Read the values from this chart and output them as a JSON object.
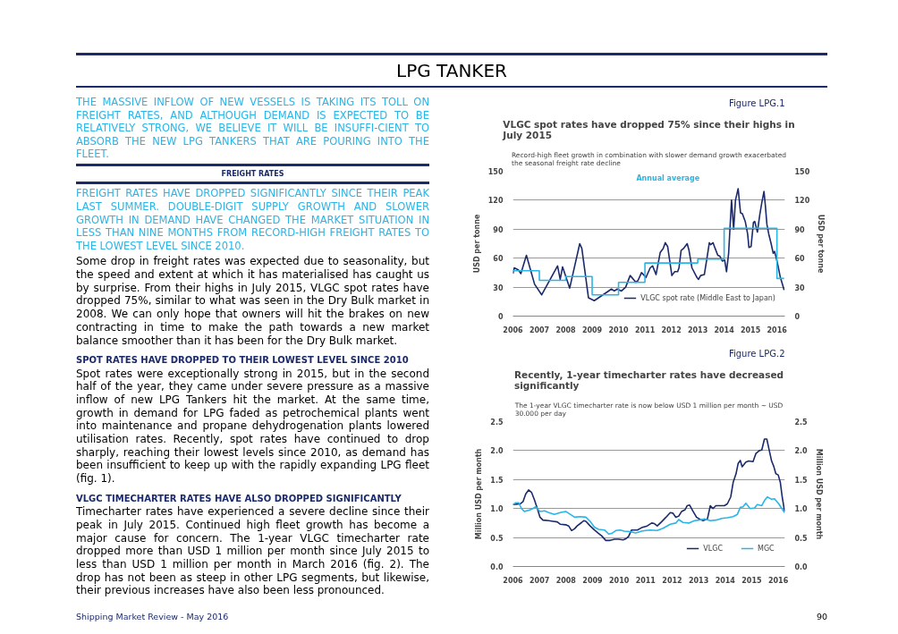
{
  "chart_data": [
    {
      "type": "line",
      "title": "VLGC spot rates have dropped 75% since their highs in July 2015",
      "subtitle": "Record-high fleet growth in combination with slower demand growth exacerbated the seasonal freight rate decline",
      "ylabel": "USD per tonne",
      "y2label": "USD per tonne",
      "annotations": [
        "Figure LPG.1",
        "LPG TANKER",
        "THE MASSIVE INFLOW OF NEW VESSELS IS TAKING ITS TOLL ON FREIGHT RATES, AND ALTHOUGH DEMAND IS EXPECTED TO BE RELATIVELY STRONG, WE BELIEVE IT WILL BE INSUFFI-CIENT TO ABSORB THE NEW LPG TANKERS THAT ARE POURING INTO THE FLEET.",
        "FREIGHT RATES",
        "FREIGHT RATES HAVE DROPPED SIGNIFICANTLY SINCE THEIR PEAK LAST SUMMER. DOUBLE-DIGIT SUPPLY GROWTH AND SLOWER GROWTH IN DEMAND HAVE CHANGED THE MARKET SITUATION IN LESS THAN NINE MONTHS FROM RECORD-HIGH FREIGHT RATES TO THE LOWEST LEVEL SINCE 2010.",
        "Some drop in freight rates was expected due to seasonality, but the speed and extent at which it has materialised has caught us by surprise. From their highs in July 2015, VLGC spot rates have dropped 75%, similar to what was seen in the Dry Bulk market in 2008. We can only hope that owners will hit the brakes on new contracting in time to make the path towards a new market balance smoother than it has been for the Dry Bulk market.",
        "SPOT RATES HAVE DROPPED TO THEIR LOWEST LEVEL SINCE 2010",
        "Spot rates were exceptionally strong in 2015, but in the second half of the year, they came under severe pressure as a massive inflow of new LPG Tankers hit the market. At the same time, growth in demand for LPG faded as petrochemical plants went into maintenance and propane dehydrogenation plants lowered utilisation rates. Recently, spot rates have continued to drop sharply, reaching their lowest levels since 2010, as demand has been insufficient to keep up with the rapidly expanding LPG fleet (fig. 1).",
        "VLGC TIMECHARTER RATES HAVE ALSO DROPPED SIGNIFICANTLY",
        "Timecharter rates have experienced a severe decline since their peak in July 2015. Continued high fleet growth has become a major cause for concern. The 1-year VLGC timecharter rate dropped more than USD 1 million per month since July 2015 to less than USD 1 million per month in March 2016 (fig. 2). The drop has not been as steep in other LPG segments, but likewise, their previous increases have also been less pronounced.",
        "Shipping Market Review - May 2016",
        "90"
      ],
      "xlim": [
        2006,
        2016.3
      ],
      "xticks": [
        2006,
        2007,
        2008,
        2009,
        2010,
        2011,
        2012,
        2013,
        2014,
        2015,
        2016
      ],
      "ylim": [
        0,
        150
      ],
      "yticks": [
        0,
        30,
        60,
        90,
        120,
        150
      ],
      "y2lim": [
        0,
        150
      ],
      "y2ticks": [
        0,
        30,
        60,
        90,
        120,
        150
      ],
      "grid": "y",
      "legend": "bottom",
      "series": [
        {
          "name": "VLGC spot rate (Middle East to Japan)",
          "color": "#1b2a6b",
          "x": [
            2006.0,
            2006.05,
            2006.2,
            2006.3,
            2006.51,
            2006.82,
            2007.09,
            2007.69,
            2007.79,
            2007.88,
            2008.15,
            2008.53,
            2008.61,
            2008.86,
            2009.08,
            2009.57,
            2009.73,
            2009.84,
            2009.95,
            2010.11,
            2010.27,
            2010.44,
            2010.66,
            2010.74,
            2010.87,
            2011.04,
            2011.2,
            2011.29,
            2011.42,
            2011.58,
            2011.69,
            2011.77,
            2011.86,
            2012.02,
            2012.13,
            2012.24,
            2012.29,
            2012.37,
            2012.46,
            2012.6,
            2012.67,
            2012.78,
            2012.97,
            2013.03,
            2013.11,
            2013.25,
            2013.36,
            2013.44,
            2013.49,
            2013.58,
            2013.66,
            2013.76,
            2013.84,
            2013.93,
            2014.02,
            2014.09,
            2014.17,
            2014.28,
            2014.36,
            2014.43,
            2014.53,
            2014.62,
            2014.69,
            2014.8,
            2014.89,
            2014.94,
            2015.02,
            2015.11,
            2015.16,
            2015.26,
            2015.35,
            2015.43,
            2015.51,
            2015.56,
            2015.62,
            2015.69,
            2015.78,
            2015.86,
            2015.91,
            2016.02,
            2016.13,
            2016.22,
            2016.27
          ],
          "values": [
            44,
            50,
            48,
            44,
            63,
            33,
            22,
            52,
            38,
            51,
            29,
            75,
            70,
            19,
            16,
            25,
            28,
            26,
            28,
            26,
            30,
            42,
            35,
            37,
            45,
            40,
            50,
            52,
            43,
            66,
            70,
            76,
            72,
            42,
            46,
            46,
            50,
            68,
            70,
            75,
            68,
            50,
            40,
            38,
            42,
            43,
            62,
            76,
            74,
            76,
            70,
            63,
            62,
            57,
            58,
            46,
            65,
            120,
            90,
            120,
            132,
            107,
            106,
            98,
            85,
            71,
            72,
            97,
            98,
            87,
            105,
            118,
            129,
            115,
            95,
            85,
            75,
            65,
            67,
            55,
            40,
            32,
            27
          ]
        },
        {
          "name": "Annual average",
          "type": "step",
          "color": "#29b5e8",
          "x": [
            2006,
            2007,
            2008,
            2009,
            2010,
            2011,
            2012,
            2013,
            2014,
            2015,
            2016,
            2016.27
          ],
          "values": [
            47,
            37,
            41,
            22,
            35,
            55,
            55,
            59,
            91,
            91,
            39,
            39
          ]
        }
      ]
    },
    {
      "type": "line",
      "title": "Recently, 1-year timecharter rates have decreased significantly",
      "subtitle": "The 1-year VLGC timecharter rate is now below USD 1 million per month ~ USD 30.000 per day",
      "ylabel": "Million USD per month",
      "y2label": "Million USD per month",
      "annotations": [
        "Figure LPG.2"
      ],
      "xlim": [
        2006,
        2016.25
      ],
      "xticks": [
        2006,
        2007,
        2008,
        2009,
        2010,
        2011,
        2012,
        2013,
        2014,
        2015,
        2016
      ],
      "ylim": [
        0,
        2.5
      ],
      "yticks": [
        {
          "value": 0,
          "label": "0.0"
        },
        0.5,
        {
          "value": 1,
          "label": "1.0"
        },
        1.5,
        {
          "value": 2,
          "label": "2.0"
        },
        2.5
      ],
      "y2lim": [
        0,
        2.5
      ],
      "y2ticks": [
        {
          "value": 0,
          "label": "0.0"
        },
        0.5,
        {
          "value": 1,
          "label": "1.0"
        },
        1.5,
        {
          "value": 2,
          "label": "2.0"
        },
        2.5
      ],
      "grid": "y",
      "legend": "bottom",
      "series": [
        {
          "name": "VLGC",
          "color": "#1b2a6b",
          "x": [
            2006.0,
            2006.27,
            2006.38,
            2006.48,
            2006.59,
            2006.7,
            2006.81,
            2006.92,
            2007.02,
            2007.13,
            2007.35,
            2007.51,
            2007.67,
            2007.78,
            2007.99,
            2008.1,
            2008.21,
            2008.32,
            2008.42,
            2008.59,
            2008.67,
            2008.75,
            2008.91,
            2009.07,
            2009.23,
            2009.34,
            2009.5,
            2009.66,
            2009.83,
            2009.99,
            2010.15,
            2010.26,
            2010.36,
            2010.47,
            2010.69,
            2010.85,
            2011.06,
            2011.23,
            2011.33,
            2011.44,
            2011.6,
            2011.77,
            2011.93,
            2012.03,
            2012.14,
            2012.25,
            2012.36,
            2012.49,
            2012.57,
            2012.66,
            2012.79,
            2012.92,
            2013.06,
            2013.17,
            2013.33,
            2013.44,
            2013.54,
            2013.65,
            2013.81,
            2013.97,
            2014.08,
            2014.21,
            2014.3,
            2014.41,
            2014.49,
            2014.57,
            2014.64,
            2014.78,
            2014.89,
            2015.05,
            2015.16,
            2015.29,
            2015.38,
            2015.48,
            2015.57,
            2015.64,
            2015.75,
            2015.83,
            2015.91,
            2016.0,
            2016.08,
            2016.15,
            2016.24
          ],
          "values": [
            1.07,
            1.08,
            1.12,
            1.25,
            1.32,
            1.28,
            1.15,
            1.0,
            0.85,
            0.8,
            0.79,
            0.78,
            0.77,
            0.73,
            0.72,
            0.7,
            0.62,
            0.65,
            0.7,
            0.76,
            0.79,
            0.78,
            0.7,
            0.63,
            0.57,
            0.53,
            0.45,
            0.45,
            0.47,
            0.47,
            0.46,
            0.48,
            0.52,
            0.63,
            0.63,
            0.67,
            0.7,
            0.75,
            0.74,
            0.7,
            0.77,
            0.85,
            0.93,
            0.92,
            0.85,
            0.87,
            0.95,
            0.98,
            1.05,
            1.06,
            0.95,
            0.85,
            0.81,
            0.79,
            0.82,
            1.05,
            1.0,
            1.05,
            1.05,
            1.05,
            1.08,
            1.2,
            1.45,
            1.6,
            1.78,
            1.83,
            1.72,
            1.8,
            1.82,
            1.81,
            1.95,
            2.0,
            2.01,
            2.2,
            2.2,
            2.05,
            1.82,
            1.73,
            1.6,
            1.58,
            1.45,
            1.2,
            0.95
          ]
        },
        {
          "name": "MGC",
          "color": "#29b5e8",
          "x": [
            2006.0,
            2006.11,
            2006.22,
            2006.32,
            2006.43,
            2006.59,
            2006.75,
            2006.86,
            2007.02,
            2007.19,
            2007.35,
            2007.56,
            2007.78,
            2007.99,
            2008.16,
            2008.32,
            2008.53,
            2008.75,
            2008.91,
            2009.07,
            2009.23,
            2009.45,
            2009.61,
            2009.72,
            2009.88,
            2010.04,
            2010.2,
            2010.42,
            2010.63,
            2010.85,
            2011.01,
            2011.17,
            2011.44,
            2011.66,
            2011.93,
            2012.14,
            2012.25,
            2012.41,
            2012.63,
            2012.84,
            2013.0,
            2013.22,
            2013.44,
            2013.65,
            2013.87,
            2014.08,
            2014.3,
            2014.46,
            2014.57,
            2014.67,
            2014.78,
            2014.94,
            2015.11,
            2015.21,
            2015.38,
            2015.5,
            2015.59,
            2015.75,
            2015.86,
            2016.02,
            2016.24
          ],
          "values": [
            1.07,
            1.1,
            1.1,
            1.0,
            0.95,
            0.97,
            1.0,
            1.03,
            0.95,
            0.96,
            0.93,
            0.9,
            0.93,
            0.95,
            0.9,
            0.85,
            0.86,
            0.85,
            0.78,
            0.68,
            0.64,
            0.63,
            0.56,
            0.57,
            0.62,
            0.63,
            0.61,
            0.6,
            0.58,
            0.61,
            0.62,
            0.63,
            0.62,
            0.66,
            0.73,
            0.75,
            0.81,
            0.76,
            0.75,
            0.79,
            0.8,
            0.82,
            0.79,
            0.8,
            0.83,
            0.84,
            0.86,
            0.9,
            1.02,
            1.03,
            1.09,
            1.0,
            1.01,
            1.07,
            1.05,
            1.15,
            1.2,
            1.16,
            1.17,
            1.08,
            0.93
          ]
        }
      ]
    }
  ]
}
